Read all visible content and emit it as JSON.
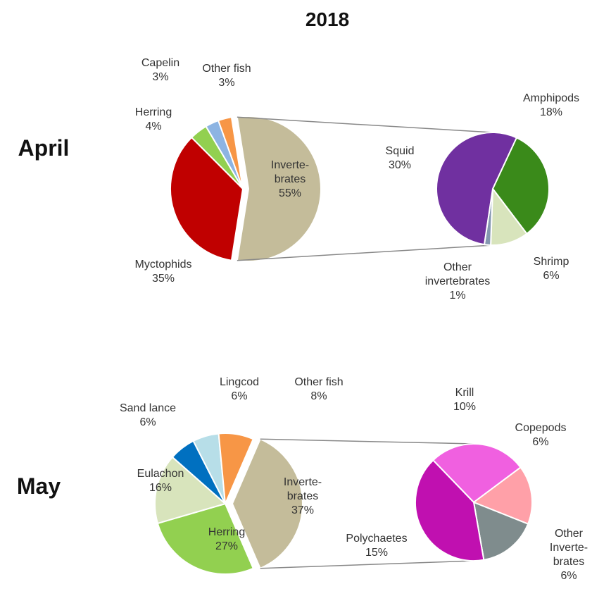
{
  "title": "2018",
  "chart_data": [
    {
      "type": "pie",
      "title": "April",
      "categories": [
        "Inverte-\nbrates",
        "Myctophids",
        "Herring",
        "Capelin",
        "Other fish"
      ],
      "values": [
        55,
        35,
        4,
        3,
        3
      ],
      "value_labels": [
        "55%",
        "35%",
        "4%",
        "3%",
        "3%"
      ],
      "colors": [
        "#c4bc9a",
        "#c00000",
        "#92d050",
        "#8db4e2",
        "#f79646"
      ],
      "sub_categories": [
        "Amphipods",
        "Shrimp",
        "Other\ninvertebrates",
        "Squid"
      ],
      "sub_values": [
        18,
        6,
        1,
        30
      ],
      "sub_value_labels": [
        "18%",
        "6%",
        "1%",
        "30%"
      ],
      "sub_colors": [
        "#3a8a1a",
        "#d8e4bc",
        "#8497b0",
        "#7030a0"
      ]
    },
    {
      "type": "pie",
      "title": "May",
      "categories": [
        "Inverte-\nbrates",
        "Herring",
        "Eulachon",
        "Sand lance",
        "Lingcod",
        "Other fish"
      ],
      "values": [
        37,
        27,
        16,
        6,
        6,
        8
      ],
      "value_labels": [
        "37%",
        "27%",
        "16%",
        "6%",
        "6%",
        "8%"
      ],
      "colors": [
        "#c4bc9a",
        "#92d050",
        "#d8e4bc",
        "#0070c0",
        "#b7dee8",
        "#f79646"
      ],
      "sub_categories": [
        "Krill",
        "Copepods",
        "Other\nInverte-\nbrates",
        "Polychaetes"
      ],
      "sub_values": [
        10,
        6,
        6,
        15
      ],
      "sub_value_labels": [
        "10%",
        "6%",
        "6%",
        "15%"
      ],
      "sub_colors": [
        "#f060e0",
        "#ffa0a8",
        "#7f8c8d",
        "#c010b0"
      ]
    }
  ]
}
